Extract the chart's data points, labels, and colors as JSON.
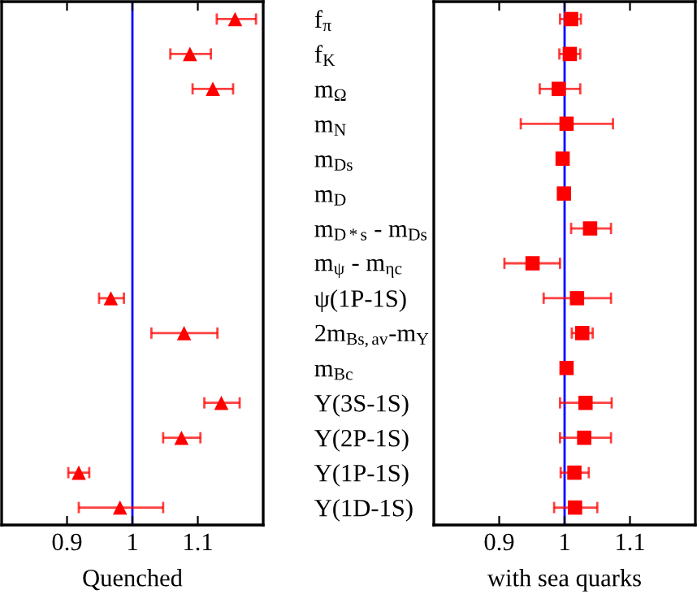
{
  "chart_data": [
    {
      "type": "scatter",
      "orientation": "horizontal",
      "xlabel": "Quenched",
      "marker": "triangle",
      "categories": [
        null,
        null,
        null,
        null,
        null,
        null,
        null,
        null,
        null,
        null,
        null,
        null,
        null,
        null,
        null
      ],
      "series": [
        {
          "color": "#ff0000",
          "values": [
            1.157,
            1.088,
            1.123,
            null,
            null,
            null,
            null,
            null,
            0.967,
            1.079,
            null,
            1.136,
            1.075,
            0.918,
            0.981
          ],
          "errors": [
            [
              1.129,
              1.189
            ],
            [
              1.058,
              1.12
            ],
            [
              1.092,
              1.154
            ],
            null,
            null,
            null,
            null,
            null,
            [
              0.949,
              0.987
            ],
            [
              1.029,
              1.13
            ],
            null,
            [
              1.11,
              1.164
            ],
            [
              1.047,
              1.104
            ],
            [
              0.902,
              0.934
            ],
            [
              0.918,
              1.047
            ]
          ]
        }
      ],
      "xlim": [
        0.8,
        1.2
      ],
      "xticks": [
        0.9,
        1,
        1.1
      ],
      "ref_lines": [
        {
          "axis": "x",
          "value": 1,
          "color": "#0000ff"
        }
      ]
    },
    {
      "type": "scatter",
      "orientation": "horizontal",
      "xlabel": "with sea quarks",
      "marker": "square",
      "categories": [
        "f$_{π}$",
        "f$_{K}$",
        "m$_{Ω}$",
        "m$_{N}$",
        "m$_{Ds}$",
        "m$_{D}$",
        "m$_{D*s}$ - m$_{Ds}$",
        "m$_{ψ}$ - m$_{ηc}$",
        "ψ(1P-1S)",
        "2m$_{Bs,av}$-m$_{Υ}$",
        "m$_{Bc}$",
        "Υ(3S-1S)",
        "Υ(2P-1S)",
        "Υ(1P-1S)",
        "Υ(1D-1S)"
      ],
      "series": [
        {
          "color": "#ff0000",
          "values": [
            1.01,
            1.008,
            0.991,
            1.003,
            0.997,
            0.999,
            1.039,
            0.951,
            1.019,
            1.027,
            1.003,
            1.032,
            1.03,
            1.015,
            1.016
          ],
          "errors": [
            [
              0.993,
              1.025
            ],
            [
              0.992,
              1.024
            ],
            [
              0.962,
              1.024
            ],
            [
              0.933,
              1.074
            ],
            null,
            null,
            [
              1.01,
              1.071
            ],
            [
              0.908,
              0.993
            ],
            [
              0.968,
              1.071
            ],
            [
              1.011,
              1.043
            ],
            null,
            [
              0.993,
              1.072
            ],
            [
              0.993,
              1.071
            ],
            [
              0.994,
              1.037
            ],
            [
              0.984,
              1.05
            ]
          ]
        }
      ],
      "xlim": [
        0.8,
        1.2
      ],
      "xticks": [
        0.9,
        1,
        1.1
      ],
      "ref_lines": [
        {
          "axis": "x",
          "value": 1,
          "color": "#0000ff"
        }
      ]
    }
  ]
}
